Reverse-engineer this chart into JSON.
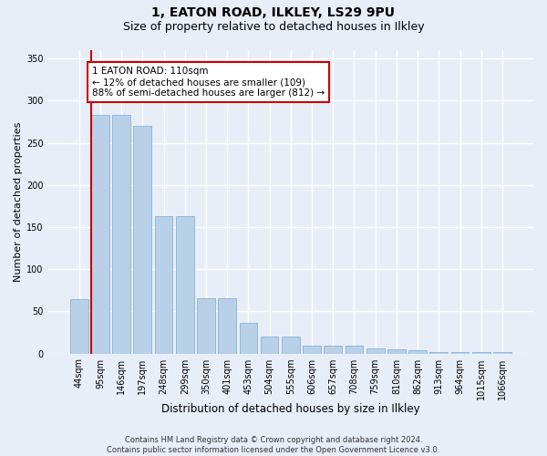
{
  "title1": "1, EATON ROAD, ILKLEY, LS29 9PU",
  "title2": "Size of property relative to detached houses in Ilkley",
  "xlabel": "Distribution of detached houses by size in Ilkley",
  "ylabel": "Number of detached properties",
  "categories": [
    "44sqm",
    "95sqm",
    "146sqm",
    "197sqm",
    "248sqm",
    "299sqm",
    "350sqm",
    "401sqm",
    "453sqm",
    "504sqm",
    "555sqm",
    "606sqm",
    "657sqm",
    "708sqm",
    "759sqm",
    "810sqm",
    "862sqm",
    "913sqm",
    "964sqm",
    "1015sqm",
    "1066sqm"
  ],
  "values": [
    65,
    283,
    283,
    270,
    163,
    163,
    66,
    66,
    36,
    20,
    20,
    9,
    9,
    9,
    6,
    5,
    4,
    2,
    2,
    2,
    2
  ],
  "bar_color": "#b8d0e8",
  "bar_edge_color": "#7aaad0",
  "vline_x": 1,
  "vline_color": "#cc0000",
  "annotation_text": "1 EATON ROAD: 110sqm\n← 12% of detached houses are smaller (109)\n88% of semi-detached houses are larger (812) →",
  "annotation_box_color": "white",
  "annotation_box_edge": "#cc0000",
  "ylim": [
    0,
    360
  ],
  "yticks": [
    0,
    50,
    100,
    150,
    200,
    250,
    300,
    350
  ],
  "footnote": "Contains HM Land Registry data © Crown copyright and database right 2024.\nContains public sector information licensed under the Open Government Licence v3.0.",
  "bg_color": "#e8eef8",
  "grid_color": "#ffffff",
  "title1_fontsize": 10,
  "title2_fontsize": 9,
  "xlabel_fontsize": 8.5,
  "ylabel_fontsize": 8,
  "tick_fontsize": 7,
  "footnote_fontsize": 6,
  "annot_fontsize": 7.5
}
